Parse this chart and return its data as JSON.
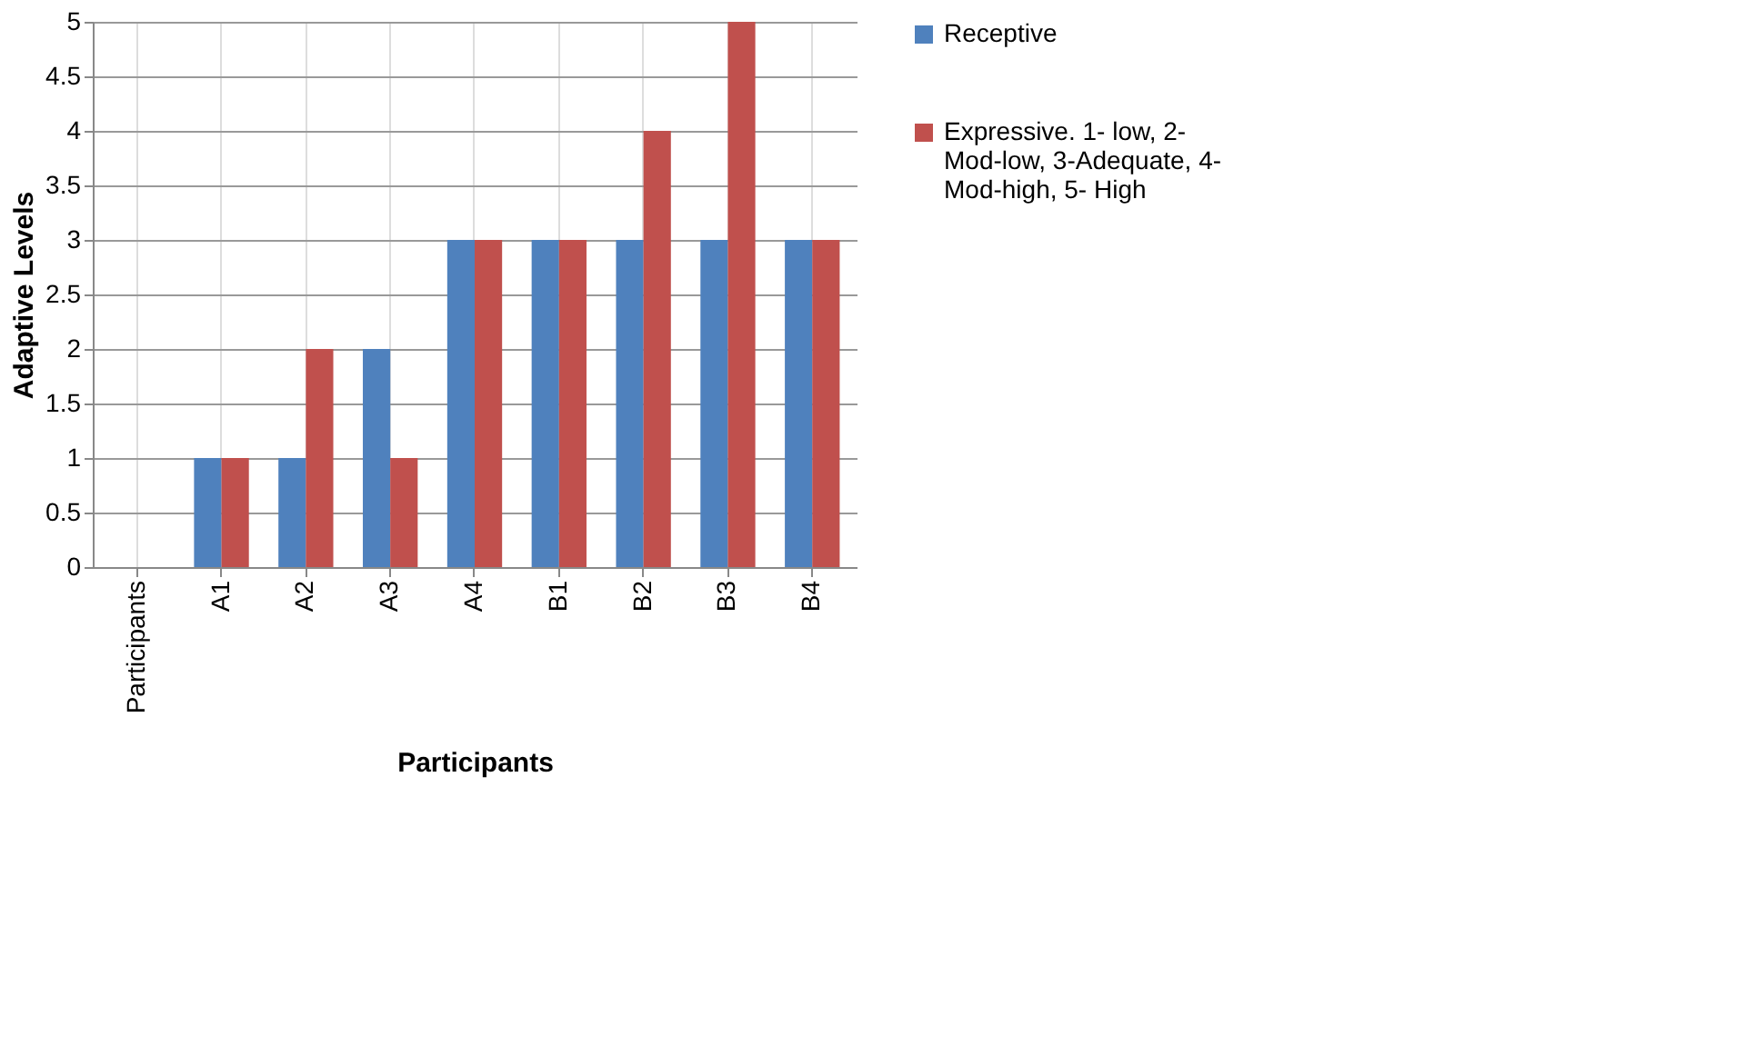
{
  "chart_data": {
    "type": "bar",
    "xlabel": "Participants",
    "ylabel": "Adaptive Levels",
    "categories": [
      "Participants",
      "A1",
      "A2",
      "A3",
      "A4",
      "B1",
      "B2",
      "B3",
      "B4"
    ],
    "series": [
      {
        "name": "Receptive",
        "color": "#4f81bd",
        "values": [
          null,
          1,
          1,
          2,
          3,
          3,
          3,
          3,
          3
        ]
      },
      {
        "name": "Expressive. 1- low, 2- Mod-low, 3-Adequate, 4- Mod-high, 5- High",
        "color": "#c0504d",
        "values": [
          null,
          1,
          2,
          1,
          3,
          3,
          4,
          5,
          3
        ]
      }
    ],
    "ylim": [
      0,
      5
    ],
    "yticks": [
      0,
      0.5,
      1,
      1.5,
      2,
      2.5,
      3,
      3.5,
      4,
      4.5,
      5
    ],
    "grid": true,
    "legend": "right"
  }
}
